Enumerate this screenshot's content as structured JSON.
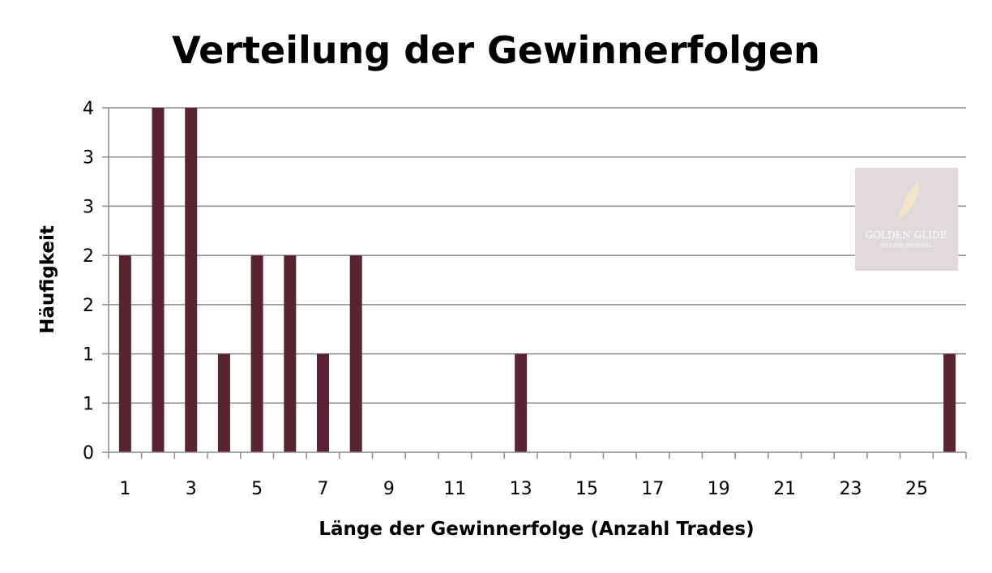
{
  "chart_data": {
    "type": "bar",
    "title": "Verteilung der Gewinnerfolgen",
    "xlabel": "Länge der Gewinnerfolge (Anzahl Trades)",
    "ylabel": "Häufigkeit",
    "categories": [
      1,
      2,
      3,
      4,
      5,
      6,
      7,
      8,
      9,
      10,
      11,
      12,
      13,
      14,
      15,
      16,
      17,
      18,
      19,
      20,
      21,
      22,
      23,
      24,
      25,
      26
    ],
    "x_tick_labels": [
      "1",
      "3",
      "5",
      "7",
      "9",
      "11",
      "13",
      "15",
      "17",
      "19",
      "21",
      "23",
      "25"
    ],
    "values": [
      2,
      3.5,
      3.5,
      1,
      2,
      2,
      1,
      2,
      0,
      0,
      0,
      0,
      1,
      0,
      0,
      0,
      0,
      0,
      0,
      0,
      0,
      0,
      0,
      0,
      0,
      1
    ],
    "ylim": [
      0,
      3.5
    ],
    "y_ticks": [
      0,
      0.5,
      1,
      1.5,
      2,
      2.5,
      3,
      3.5
    ],
    "y_tick_labels": [
      "0",
      "1",
      "1",
      "2",
      "2",
      "3",
      "3",
      "4"
    ],
    "bar_color": "#5a2332",
    "grid": true
  },
  "watermark": {
    "line1": "GOLDEN GLIDE",
    "line2": "INCOME JOURNAL",
    "bg_color": "#e2dada"
  }
}
